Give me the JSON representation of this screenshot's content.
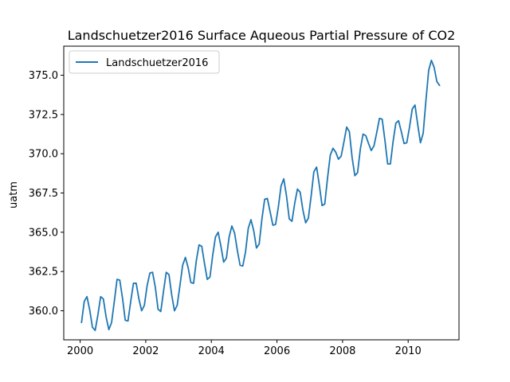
{
  "chart_data": {
    "type": "line",
    "title": "Landschuetzer2016 Surface Aqueous Partial Pressure of CO2",
    "xlabel": "",
    "ylabel": "uatm",
    "xlim": [
      1999.5,
      2011.55
    ],
    "ylim": [
      358.15,
      376.85
    ],
    "x_ticks": [
      2000,
      2002,
      2004,
      2006,
      2008,
      2010
    ],
    "y_ticks": [
      360.0,
      362.5,
      365.0,
      367.5,
      370.0,
      372.5,
      375.0
    ],
    "grid": false,
    "legend_position": "top-left",
    "series": [
      {
        "name": "Landschuetzer2016",
        "color": "#1f77b4",
        "x": [
          2000.042,
          2000.125,
          2000.208,
          2000.292,
          2000.375,
          2000.458,
          2000.542,
          2000.625,
          2000.708,
          2000.792,
          2000.875,
          2000.958,
          2001.042,
          2001.125,
          2001.208,
          2001.292,
          2001.375,
          2001.458,
          2001.542,
          2001.625,
          2001.708,
          2001.792,
          2001.875,
          2001.958,
          2002.042,
          2002.125,
          2002.208,
          2002.292,
          2002.375,
          2002.458,
          2002.542,
          2002.625,
          2002.708,
          2002.792,
          2002.875,
          2002.958,
          2003.042,
          2003.125,
          2003.208,
          2003.292,
          2003.375,
          2003.458,
          2003.542,
          2003.625,
          2003.708,
          2003.792,
          2003.875,
          2003.958,
          2004.042,
          2004.125,
          2004.208,
          2004.292,
          2004.375,
          2004.458,
          2004.542,
          2004.625,
          2004.708,
          2004.792,
          2004.875,
          2004.958,
          2005.042,
          2005.125,
          2005.208,
          2005.292,
          2005.375,
          2005.458,
          2005.542,
          2005.625,
          2005.708,
          2005.792,
          2005.875,
          2005.958,
          2006.042,
          2006.125,
          2006.208,
          2006.292,
          2006.375,
          2006.458,
          2006.542,
          2006.625,
          2006.708,
          2006.792,
          2006.875,
          2006.958,
          2007.042,
          2007.125,
          2007.208,
          2007.292,
          2007.375,
          2007.458,
          2007.542,
          2007.625,
          2007.708,
          2007.792,
          2007.875,
          2007.958,
          2008.042,
          2008.125,
          2008.208,
          2008.292,
          2008.375,
          2008.458,
          2008.542,
          2008.625,
          2008.708,
          2008.792,
          2008.875,
          2008.958,
          2009.042,
          2009.125,
          2009.208,
          2009.292,
          2009.375,
          2009.458,
          2009.542,
          2009.625,
          2009.708,
          2009.792,
          2009.875,
          2009.958,
          2010.042,
          2010.125,
          2010.208,
          2010.292,
          2010.375,
          2010.458,
          2010.542,
          2010.625,
          2010.708,
          2010.792,
          2010.875,
          2010.958
        ],
        "y": [
          359.25,
          360.6,
          360.9,
          360.05,
          358.95,
          358.75,
          359.75,
          360.9,
          360.75,
          359.6,
          358.8,
          359.25,
          360.6,
          362.0,
          361.95,
          360.8,
          359.4,
          359.35,
          360.6,
          361.75,
          361.75,
          360.75,
          360.0,
          360.35,
          361.6,
          362.4,
          362.45,
          361.5,
          360.1,
          359.95,
          361.25,
          362.45,
          362.3,
          361.0,
          360.0,
          360.35,
          361.6,
          362.9,
          363.4,
          362.75,
          361.8,
          361.75,
          363.2,
          364.2,
          364.1,
          363.0,
          362.0,
          362.15,
          363.55,
          364.7,
          365.0,
          364.1,
          363.1,
          363.35,
          364.7,
          365.4,
          364.95,
          363.85,
          362.9,
          362.85,
          363.75,
          365.25,
          365.8,
          365.1,
          364.0,
          364.25,
          365.85,
          367.1,
          367.15,
          366.3,
          365.45,
          365.5,
          366.6,
          367.95,
          368.4,
          367.3,
          365.85,
          365.7,
          366.85,
          367.75,
          367.55,
          366.4,
          365.6,
          365.9,
          367.3,
          368.85,
          369.15,
          368.0,
          366.7,
          366.8,
          368.45,
          369.9,
          370.35,
          370.1,
          369.65,
          369.85,
          370.75,
          371.7,
          371.4,
          369.75,
          368.6,
          368.8,
          370.3,
          371.25,
          371.15,
          370.65,
          370.2,
          370.5,
          371.35,
          372.25,
          372.2,
          370.85,
          369.35,
          369.35,
          370.8,
          371.95,
          372.1,
          371.4,
          370.65,
          370.7,
          371.7,
          372.85,
          373.1,
          371.85,
          370.7,
          371.3,
          373.4,
          375.3,
          375.95,
          375.5,
          374.6,
          374.35
        ]
      }
    ]
  }
}
